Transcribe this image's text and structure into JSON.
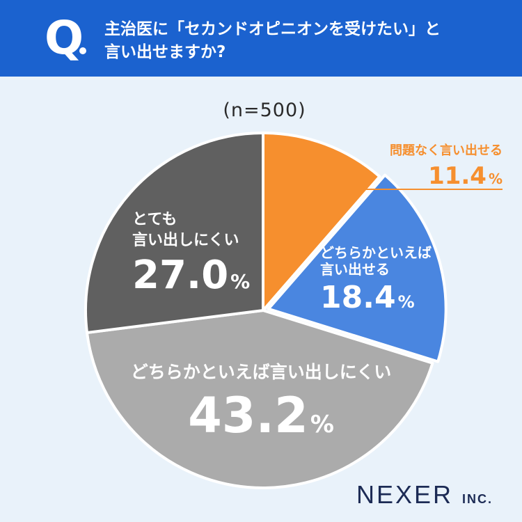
{
  "header": {
    "q_mark": "Q",
    "question_line1": "主治医に「セカンドオピニオンを受けたい」と",
    "question_line2": "言い出せますか?"
  },
  "sample_size": "(n=500)",
  "logo": {
    "name": "NEXER",
    "suffix": "INC."
  },
  "colors": {
    "header_bg": "#1b62cf",
    "background": "#e9f2fa",
    "slice_easy": "#f68f2e",
    "slice_somewhat_easy": "#4a86e0",
    "slice_somewhat_hard": "#ababab",
    "slice_very_hard": "#606060"
  },
  "chart_data": {
    "type": "pie",
    "unit": "%",
    "categories": [
      "問題なく言い出せる",
      "どちらかといえば言い出せる",
      "どちらかといえば言い出しにくい",
      "とても言い出しにくい"
    ],
    "values": [
      11.4,
      18.4,
      43.2,
      27.0
    ],
    "labels": [
      {
        "lines": [
          "問題なく言い出せる"
        ],
        "value": "11.4",
        "unit": "%"
      },
      {
        "lines": [
          "どちらかといえば",
          "言い出せる"
        ],
        "value": "18.4",
        "unit": "%"
      },
      {
        "lines": [
          "どちらかといえば言い出しにくい"
        ],
        "value": "43.2",
        "unit": "%"
      },
      {
        "lines": [
          "とても",
          "言い出しにくい"
        ],
        "value": "27.0",
        "unit": "%"
      }
    ],
    "colors": [
      "#f68f2e",
      "#4a86e0",
      "#ababab",
      "#606060"
    ],
    "start_angle_deg": 0,
    "direction": "clockwise",
    "exploded_slice": "どちらかといえば言い出せる"
  }
}
